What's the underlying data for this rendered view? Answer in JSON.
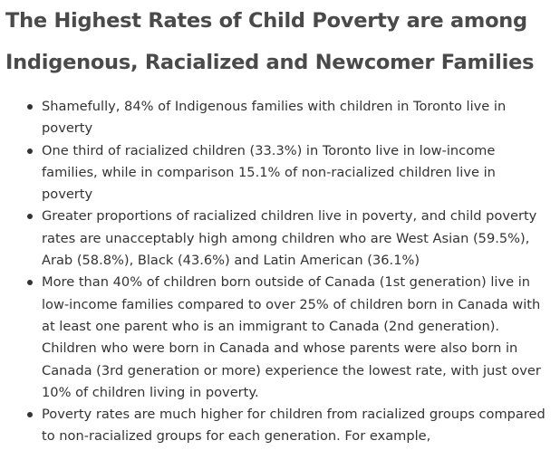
{
  "heading": "The Highest Rates of Child Poverty are among Indigenous, Racialized and Newcomer Families",
  "bullets": [
    "Shamefully, 84% of Indigenous families with children in Toronto live in poverty",
    "One third of racialized children (33.3%) in Toronto live in low-income families, while in comparison 15.1% of non-racialized children live in poverty",
    "Greater proportions of racialized children live in poverty, and child poverty rates are unacceptably high among children who are West Asian (59.5%), Arab (58.8%), Black (43.6%) and Latin American (36.1%)",
    "More than 40% of children born outside of Canada (1st generation) live in low-income families compared to over 25% of children born in Canada with at least one parent who is an immigrant to Canada (2nd generation). Children who were born in Canada and whose parents were also born in Canada (3rd generation or more) experience the lowest rate, with just over 10% of children living in poverty.",
    "Poverty rates are much higher for children from racialized groups compared to non-racialized groups for each generation. For example,"
  ]
}
